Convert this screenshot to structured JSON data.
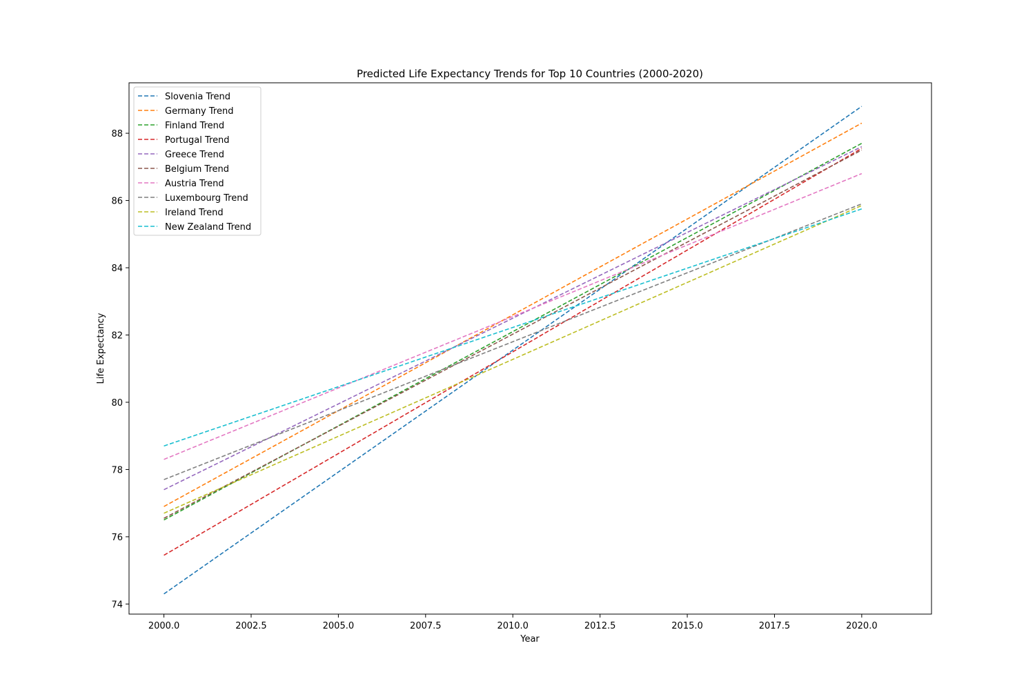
{
  "chart_data": {
    "type": "line",
    "title": "Predicted Life Expectancy Trends for Top 10 Countries (2000-2020)",
    "xlabel": "Year",
    "ylabel": "Life Expectancy",
    "xlim": [
      1999.0,
      2022.0
    ],
    "ylim": [
      73.7,
      89.5
    ],
    "xticks": [
      2000.0,
      2002.5,
      2005.0,
      2007.5,
      2010.0,
      2012.5,
      2015.0,
      2017.5,
      2020.0
    ],
    "xtick_labels": [
      "2000.0",
      "2002.5",
      "2005.0",
      "2007.5",
      "2010.0",
      "2012.5",
      "2015.0",
      "2017.5",
      "2020.0"
    ],
    "yticks": [
      74,
      76,
      78,
      80,
      82,
      84,
      86,
      88
    ],
    "ytick_labels": [
      "74",
      "76",
      "78",
      "80",
      "82",
      "84",
      "86",
      "88"
    ],
    "grid": false,
    "legend_position": "upper left",
    "line_style": "dashed",
    "series": [
      {
        "name": "Slovenia Trend",
        "color": "#1f77b4",
        "x": [
          2000,
          2020
        ],
        "y": [
          74.3,
          88.8
        ]
      },
      {
        "name": "Germany Trend",
        "color": "#ff7f0e",
        "x": [
          2000,
          2020
        ],
        "y": [
          76.9,
          88.3
        ]
      },
      {
        "name": "Finland Trend",
        "color": "#2ca02c",
        "x": [
          2000,
          2020
        ],
        "y": [
          76.5,
          87.7
        ]
      },
      {
        "name": "Portugal Trend",
        "color": "#d62728",
        "x": [
          2000,
          2020
        ],
        "y": [
          75.45,
          87.55
        ]
      },
      {
        "name": "Greece Trend",
        "color": "#9467bd",
        "x": [
          2000,
          2020
        ],
        "y": [
          77.4,
          87.6
        ]
      },
      {
        "name": "Belgium Trend",
        "color": "#8c564b",
        "x": [
          2000,
          2020
        ],
        "y": [
          76.55,
          87.5
        ]
      },
      {
        "name": "Austria Trend",
        "color": "#e377c2",
        "x": [
          2000,
          2020
        ],
        "y": [
          78.3,
          86.8
        ]
      },
      {
        "name": "Luxembourg Trend",
        "color": "#7f7f7f",
        "x": [
          2000,
          2020
        ],
        "y": [
          77.7,
          85.9
        ]
      },
      {
        "name": "Ireland Trend",
        "color": "#bcbd22",
        "x": [
          2000,
          2020
        ],
        "y": [
          76.7,
          85.85
        ]
      },
      {
        "name": "New Zealand Trend",
        "color": "#17becf",
        "x": [
          2000,
          2020
        ],
        "y": [
          78.7,
          85.75
        ]
      }
    ]
  }
}
